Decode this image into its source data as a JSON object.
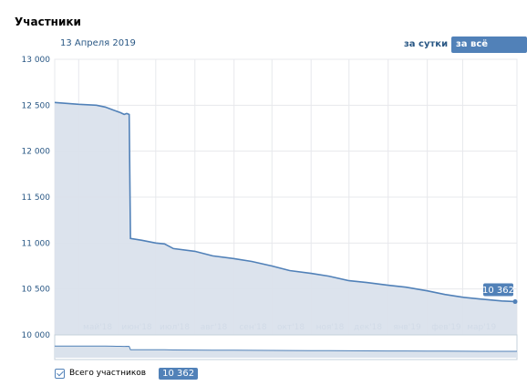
{
  "header": {
    "title": "Участники",
    "date": "13 Апреля 2019",
    "range_day": "за сутки",
    "range_all": "за всё время"
  },
  "legend": {
    "label": "Всего участников",
    "value": "10 362"
  },
  "colors": {
    "line": "#5181b8",
    "fill": "#dae2ec",
    "grid": "#e7e8ec",
    "label": "#2a5885"
  },
  "chart_data": {
    "type": "area",
    "ylim": [
      10000,
      13000
    ],
    "yticks": [
      10000,
      10500,
      11000,
      11500,
      12000,
      12500,
      13000
    ],
    "ytick_labels": [
      "10 000",
      "10 500",
      "11 000",
      "11 500",
      "12 000",
      "12 500",
      "13 000"
    ],
    "xlim": [
      "2018-04-12",
      "2019-04-13"
    ],
    "xticks": [
      {
        "date": "2018-05-01",
        "label": "май'18"
      },
      {
        "date": "2018-06-01",
        "label": "июн'18"
      },
      {
        "date": "2018-07-01",
        "label": "июл'18"
      },
      {
        "date": "2018-08-01",
        "label": "авг'18"
      },
      {
        "date": "2018-09-01",
        "label": "сен'18"
      },
      {
        "date": "2018-10-01",
        "label": "окт'18"
      },
      {
        "date": "2018-11-01",
        "label": "ноя'18"
      },
      {
        "date": "2018-12-01",
        "label": "дек'18"
      },
      {
        "date": "2019-01-01",
        "label": "янв'19"
      },
      {
        "date": "2019-02-01",
        "label": "фев'19"
      },
      {
        "date": "2019-03-01",
        "label": "мар'19"
      }
    ],
    "series": [
      {
        "points": [
          [
            "2018-04-12",
            12530
          ],
          [
            "2018-05-01",
            12510
          ],
          [
            "2018-05-15",
            12500
          ],
          [
            "2018-05-22",
            12480
          ],
          [
            "2018-05-28",
            12450
          ],
          [
            "2018-06-03",
            12420
          ],
          [
            "2018-06-06",
            12400
          ],
          [
            "2018-06-08",
            12410
          ],
          [
            "2018-06-10",
            12400
          ],
          [
            "2018-06-11",
            11050
          ],
          [
            "2018-06-20",
            11030
          ],
          [
            "2018-07-01",
            11000
          ],
          [
            "2018-07-08",
            10990
          ],
          [
            "2018-07-15",
            10940
          ],
          [
            "2018-08-01",
            10910
          ],
          [
            "2018-08-15",
            10860
          ],
          [
            "2018-09-01",
            10830
          ],
          [
            "2018-09-15",
            10800
          ],
          [
            "2018-10-01",
            10750
          ],
          [
            "2018-10-15",
            10700
          ],
          [
            "2018-11-01",
            10670
          ],
          [
            "2018-11-15",
            10640
          ],
          [
            "2018-12-01",
            10590
          ],
          [
            "2018-12-15",
            10570
          ],
          [
            "2019-01-01",
            10540
          ],
          [
            "2019-01-15",
            10520
          ],
          [
            "2019-02-01",
            10480
          ],
          [
            "2019-02-15",
            10440
          ],
          [
            "2019-03-01",
            10410
          ],
          [
            "2019-03-15",
            10390
          ],
          [
            "2019-04-01",
            10370
          ],
          [
            "2019-04-13",
            10362
          ]
        ]
      }
    ],
    "last_value_label": "10 362",
    "grid": true
  }
}
